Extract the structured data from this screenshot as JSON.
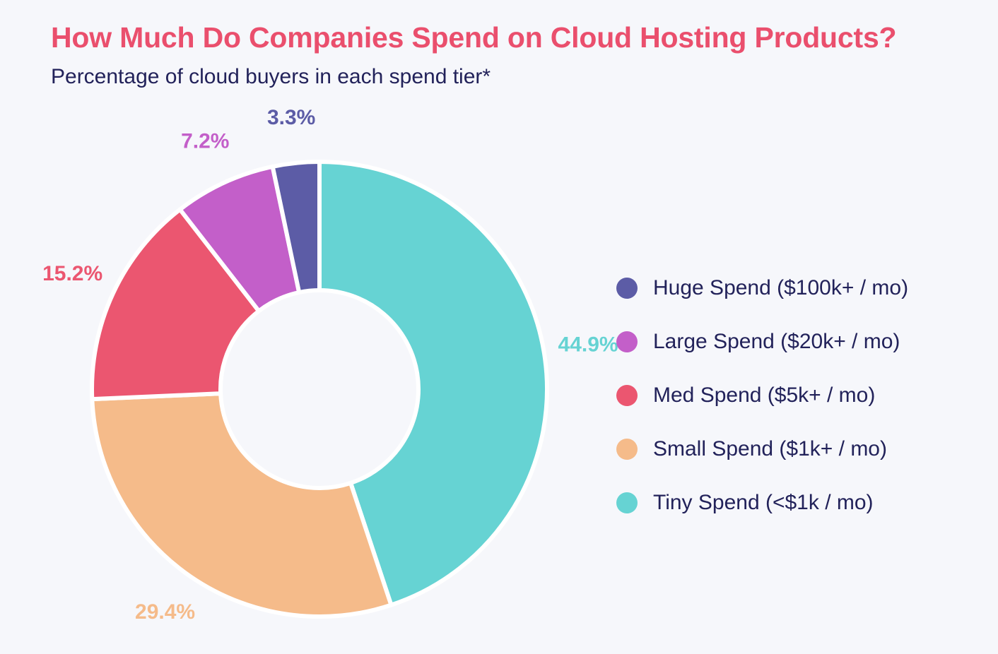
{
  "chart_data": {
    "type": "pie",
    "variant": "donut",
    "title": "How Much Do Companies Spend on Cloud Hosting Products?",
    "subtitle": "Percentage of cloud buyers in each spend tier*",
    "legend_position": "right",
    "series": [
      {
        "name": "Huge Spend ($100k+ / mo)",
        "value": 3.3,
        "label": "3.3%",
        "color": "#5c5ca6"
      },
      {
        "name": "Large Spend ($20k+ / mo)",
        "value": 7.2,
        "label": "7.2%",
        "color": "#c35fc9"
      },
      {
        "name": "Med Spend ($5k+ / mo)",
        "value": 15.2,
        "label": "15.2%",
        "color": "#eb5670"
      },
      {
        "name": "Small Spend ($1k+ / mo)",
        "value": 29.4,
        "label": "29.4%",
        "color": "#f5bb8a"
      },
      {
        "name": "Tiny Spend (<$1k / mo)",
        "value": 44.9,
        "label": "44.9%",
        "color": "#66d3d3"
      }
    ]
  }
}
